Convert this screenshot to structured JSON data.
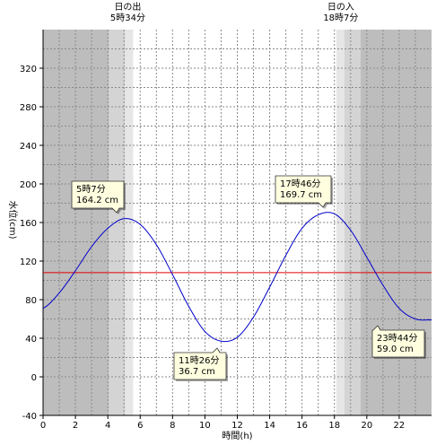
{
  "chart_data": {
    "type": "line",
    "title": "",
    "xlabel": "時間(h)",
    "ylabel": "水位(cm)",
    "xlim": [
      0,
      24
    ],
    "ylim": [
      -40,
      360
    ],
    "x_ticks": [
      0,
      2,
      4,
      6,
      8,
      10,
      12,
      14,
      16,
      18,
      20,
      22
    ],
    "y_ticks": [
      -40,
      0,
      40,
      80,
      120,
      160,
      200,
      240,
      280,
      320
    ],
    "grid": true,
    "reference_line": {
      "y": 108,
      "color": "#e00000"
    },
    "line_color": "#0000cc",
    "sunrise": {
      "label": "日の出",
      "time_label": "5時34分",
      "hour": 5.567
    },
    "sunset": {
      "label": "日の入",
      "time_label": "18時7分",
      "hour": 18.117
    },
    "tide_extrema": [
      {
        "hour": 5.117,
        "value": 164.2,
        "time_label": "5時7分",
        "value_label": "164.2 cm",
        "kind": "high"
      },
      {
        "hour": 11.433,
        "value": 36.7,
        "time_label": "11時26分",
        "value_label": "36.7 cm",
        "kind": "low"
      },
      {
        "hour": 17.767,
        "value": 169.7,
        "time_label": "17時46分",
        "value_label": "169.7 cm",
        "kind": "high"
      },
      {
        "hour": 23.733,
        "value": 59.0,
        "time_label": "23時44分",
        "value_label": "59.0 cm",
        "kind": "low"
      }
    ],
    "series": [
      {
        "values": [
          [
            0,
            71
          ],
          [
            1,
            87
          ],
          [
            2,
            110
          ],
          [
            3,
            135
          ],
          [
            4,
            154
          ],
          [
            5,
            164
          ],
          [
            6,
            158
          ],
          [
            7,
            137
          ],
          [
            8,
            106
          ],
          [
            9,
            73
          ],
          [
            10,
            47
          ],
          [
            11,
            37
          ],
          [
            12,
            41
          ],
          [
            13,
            62
          ],
          [
            14,
            93
          ],
          [
            15,
            126
          ],
          [
            16,
            154
          ],
          [
            17,
            168
          ],
          [
            18,
            169
          ],
          [
            19,
            152
          ],
          [
            20,
            124
          ],
          [
            21,
            95
          ],
          [
            22,
            71
          ],
          [
            23,
            60
          ],
          [
            24,
            59
          ]
        ]
      }
    ]
  }
}
